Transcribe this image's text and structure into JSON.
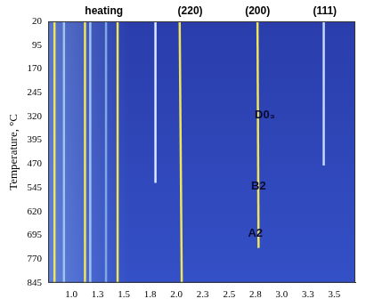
{
  "chart_data": {
    "type": "line",
    "y_label": "Temperature, °C",
    "xlim": [
      0.78,
      3.7
    ],
    "xticks": [
      {
        "value": 1,
        "label": "1.0"
      },
      {
        "value": 1.25,
        "label": "1.3"
      },
      1.5,
      {
        "value": 1.75,
        "label": "1.8"
      },
      {
        "value": 2,
        "label": "2.0"
      },
      {
        "value": 2.25,
        "label": "2.3"
      },
      2.5,
      {
        "value": 2.75,
        "label": "2.8"
      },
      {
        "value": 3,
        "label": "3.0"
      },
      {
        "value": 3.25,
        "label": "3.3"
      },
      3.5
    ],
    "ylim": [
      845,
      20
    ],
    "yticks": [
      20,
      95,
      170,
      245,
      320,
      395,
      470,
      545,
      620,
      695,
      770,
      845
    ],
    "grid": false,
    "series": [
      {
        "color": "#f0e45a",
        "x": [
          0.84,
          0.84
        ],
        "y": [
          20,
          845
        ]
      },
      {
        "color": "#9fc3ee",
        "x": [
          0.93,
          0.93
        ],
        "y": [
          20,
          845
        ]
      },
      {
        "color": "#f0e45a",
        "x": [
          1.13,
          1.13
        ],
        "y": [
          20,
          845
        ]
      },
      {
        "color": "#9fc3ee",
        "x": [
          1.18,
          1.18
        ],
        "y": [
          20,
          845
        ]
      },
      {
        "color": "#7fa6e6",
        "x": [
          1.33,
          1.33
        ],
        "y": [
          20,
          845
        ]
      },
      {
        "color": "#f0e45a",
        "x": [
          1.44,
          1.44
        ],
        "y": [
          20,
          845
        ]
      },
      {
        "color": "#dce8ff",
        "x": [
          1.8,
          1.8
        ],
        "y": [
          20,
          530
        ]
      },
      {
        "color": "#f0e45a",
        "x": [
          2.03,
          2.05
        ],
        "y": [
          20,
          845
        ]
      },
      {
        "color": "#f0e45a",
        "x": [
          2.77,
          2.78
        ],
        "y": [
          20,
          735
        ]
      },
      {
        "color": "#c6d8f8",
        "x": [
          3.4,
          3.4
        ],
        "y": [
          20,
          475
        ]
      }
    ],
    "column_labels": [
      {
        "text": "heating",
        "x": 1.31
      },
      {
        "text": "(220)",
        "x": 2.13
      },
      {
        "text": "(200)",
        "x": 2.77
      },
      {
        "text": "(111)",
        "x": 3.41
      }
    ],
    "annotations": [
      {
        "text": "D0₃",
        "x": 2.84,
        "y": 315
      },
      {
        "text": "B2",
        "x": 2.78,
        "y": 540
      },
      {
        "text": "A2",
        "x": 2.75,
        "y": 690
      }
    ]
  }
}
